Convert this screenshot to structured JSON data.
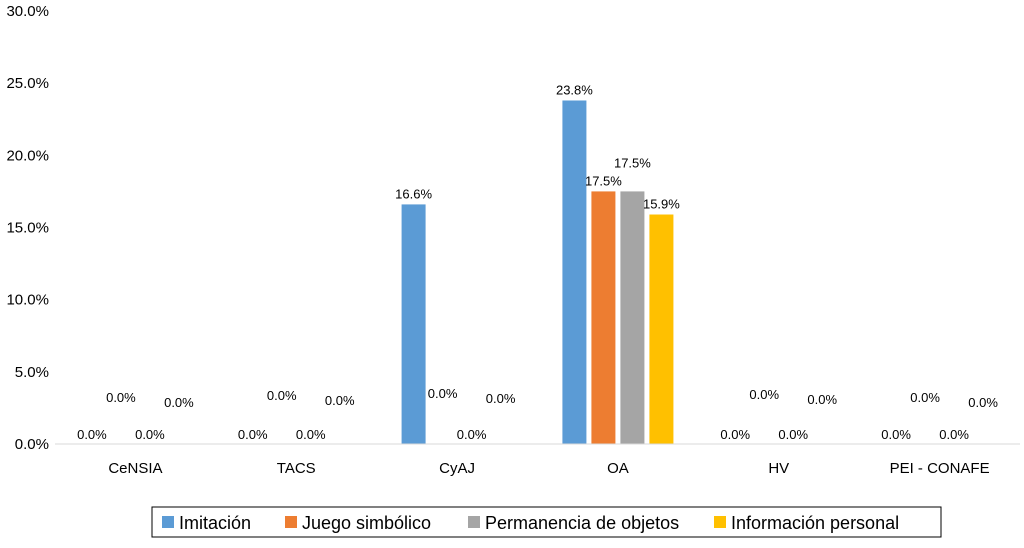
{
  "chart_data": {
    "type": "bar",
    "title": "",
    "xlabel": "",
    "ylabel": "",
    "ylim": [
      0,
      30
    ],
    "yticks": [
      "0.0%",
      "5.0%",
      "10.0%",
      "15.0%",
      "20.0%",
      "25.0%",
      "30.0%"
    ],
    "categories": [
      "CeNSIA",
      "TACS",
      "CyAJ",
      "OA",
      "HV",
      "PEI - CONAFE"
    ],
    "series": [
      {
        "name": "Imitación",
        "color": "#5B9BD5",
        "values": [
          0.0,
          0.0,
          16.6,
          23.8,
          0.0,
          0.0
        ],
        "labels": [
          "0.0%",
          "0.0%",
          "16.6%",
          "23.8%",
          "0.0%",
          "0.0%"
        ]
      },
      {
        "name": "Juego simbólico",
        "color": "#ED7D31",
        "values": [
          0.0,
          0.0,
          0.0,
          17.5,
          0.0,
          0.0
        ],
        "labels": [
          "0.0%",
          "0.0%",
          "0.0%",
          "17.5%",
          "0.0%",
          "0.0%"
        ]
      },
      {
        "name": "Permanencia de objetos",
        "color": "#A5A5A5",
        "values": [
          0.0,
          0.0,
          0.0,
          17.5,
          0.0,
          0.0
        ],
        "labels": [
          "0.0%",
          "0.0%",
          "0.0%",
          "17.5%",
          "0.0%",
          "0.0%"
        ]
      },
      {
        "name": "Información personal",
        "color": "#FFC000",
        "values": [
          0.0,
          0.0,
          0.0,
          15.9,
          0.0,
          0.0
        ],
        "labels": [
          "0.0%",
          "0.0%",
          "0.0%",
          "15.9%",
          "0.0%",
          "0.0%"
        ]
      }
    ],
    "grid": false,
    "legend": "bottom"
  }
}
